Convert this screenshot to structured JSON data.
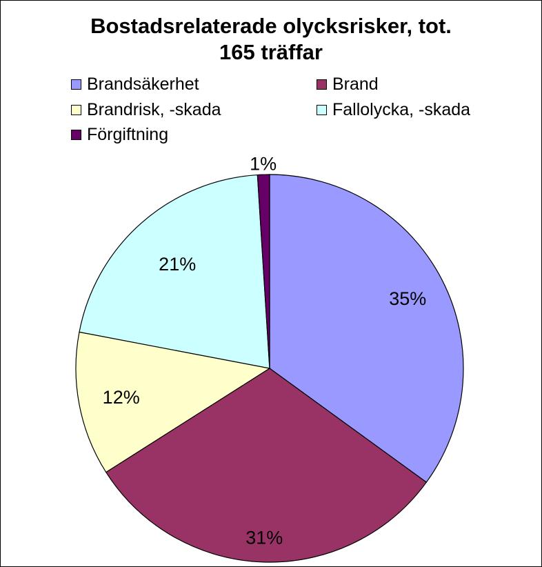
{
  "chart_data": {
    "type": "pie",
    "title": [
      "Bostadsrelaterade olycksrisker, tot.",
      "165 träffar"
    ],
    "legend_placement": "top",
    "slices": [
      {
        "name": "Brandsäkerhet",
        "value": 35,
        "label": "35%",
        "color": "#9999ff"
      },
      {
        "name": "Brand",
        "value": 31,
        "label": "31%",
        "color": "#993366"
      },
      {
        "name": "Brandrisk, -skada",
        "value": 12,
        "label": "12%",
        "color": "#ffffcc"
      },
      {
        "name": "Fallolycka, -skada",
        "value": 21,
        "label": "21%",
        "color": "#ccffff"
      },
      {
        "name": "Förgiftning",
        "value": 1,
        "label": "1%",
        "color": "#660066"
      }
    ]
  }
}
